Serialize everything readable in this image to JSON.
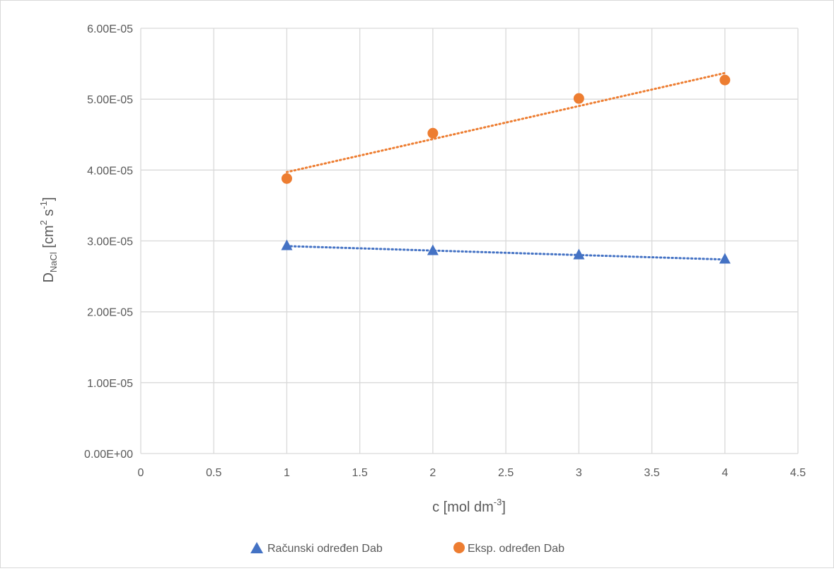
{
  "chart_data": {
    "type": "scatter",
    "title": "",
    "xlabel": {
      "main": "c [mol dm",
      "sup": "-3",
      "tail": "]"
    },
    "ylabel": {
      "main": "D",
      "sub": "NaCl",
      "mid": " [cm",
      "sup1": "2",
      "mid2": " s",
      "sup2": "-1",
      "tail": "]"
    },
    "xlim": [
      0,
      4.5
    ],
    "ylim": [
      0,
      6e-05
    ],
    "x_ticks": [
      0,
      0.5,
      1,
      1.5,
      2,
      2.5,
      3,
      3.5,
      4,
      4.5
    ],
    "x_tick_labels": [
      "0",
      "0.5",
      "1",
      "1.5",
      "2",
      "2.5",
      "3",
      "3.5",
      "4",
      "4.5"
    ],
    "y_ticks": [
      0,
      1e-05,
      2e-05,
      3e-05,
      4e-05,
      5e-05,
      6e-05
    ],
    "y_tick_labels": [
      "0.00E+00",
      "1.00E-05",
      "2.00E-05",
      "3.00E-05",
      "4.00E-05",
      "5.00E-05",
      "6.00E-05"
    ],
    "grid": true,
    "legend_position": "bottom",
    "series": [
      {
        "name": "Računski određen Dab",
        "marker": "triangle",
        "color": "#4472c4",
        "trendline": "linear-dotted",
        "x": [
          1,
          2,
          3,
          4
        ],
        "y": [
          2.93e-05,
          2.86e-05,
          2.8e-05,
          2.74e-05
        ]
      },
      {
        "name": "Eksp. određen Dab",
        "marker": "circle",
        "color": "#ed7d31",
        "trendline": "linear-dotted",
        "x": [
          1,
          2,
          3,
          4
        ],
        "y": [
          3.88e-05,
          4.52e-05,
          5.01e-05,
          5.27e-05
        ]
      }
    ]
  }
}
